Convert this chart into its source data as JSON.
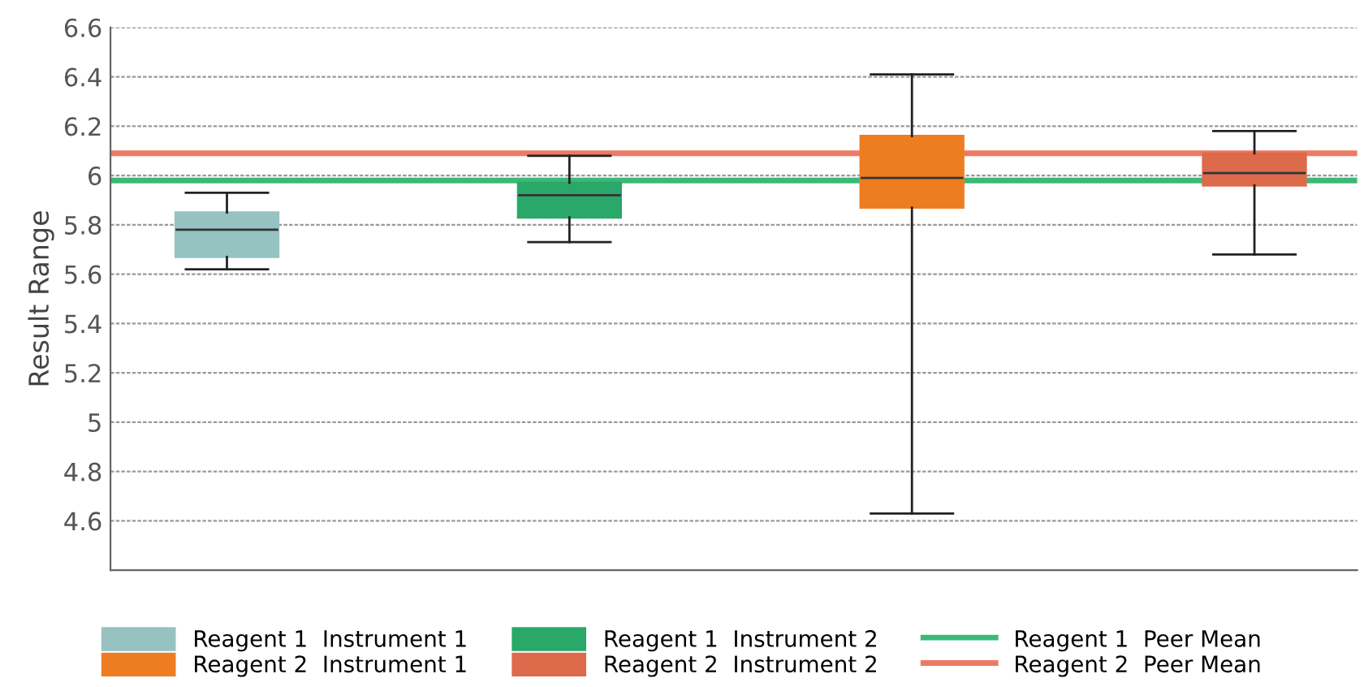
{
  "chart_data": {
    "type": "box",
    "ylabel": "Result Range",
    "categories": [
      null,
      null,
      null,
      null
    ],
    "series": [
      {
        "name": "Reagent 1  Instrument 1",
        "color": "#96c3c1",
        "boxes": [
          {
            "low": 5.62,
            "q1": 5.67,
            "median": 5.78,
            "q3": 5.85,
            "high": 5.93
          },
          null,
          null,
          null
        ]
      },
      {
        "name": "Reagent 2  Instrument 1",
        "color": "#ee7d22",
        "boxes": [
          null,
          null,
          {
            "low": 4.63,
            "q1": 5.87,
            "median": 5.99,
            "q3": 6.16,
            "high": 6.41
          },
          null
        ]
      },
      {
        "name": "Reagent 1  Instrument 2",
        "color": "#2aa86a",
        "boxes": [
          null,
          {
            "low": 5.73,
            "q1": 5.83,
            "median": 5.92,
            "q3": 5.97,
            "high": 6.08
          },
          null,
          null
        ]
      },
      {
        "name": "Reagent 2  Instrument 2",
        "color": "#dd6a4b",
        "boxes": [
          null,
          null,
          null,
          {
            "low": 5.68,
            "q1": 5.96,
            "median": 6.01,
            "q3": 6.09,
            "high": 6.18
          }
        ]
      }
    ],
    "ref_lines": [
      {
        "axis": "y",
        "value": 5.98,
        "label": "Reagent 1  Peer Mean",
        "color": "#3cb878"
      },
      {
        "axis": "y",
        "value": 6.09,
        "label": "Reagent 2  Peer Mean",
        "color": "#ee7a63"
      }
    ],
    "ylim": [
      4.4,
      6.6
    ],
    "yticks": [
      4.6,
      4.8,
      5,
      5.2,
      5.4,
      5.6,
      5.8,
      6,
      6.2,
      6.4,
      6.6
    ],
    "grid": "y",
    "legend": "bottom",
    "tick_labels": "y"
  }
}
